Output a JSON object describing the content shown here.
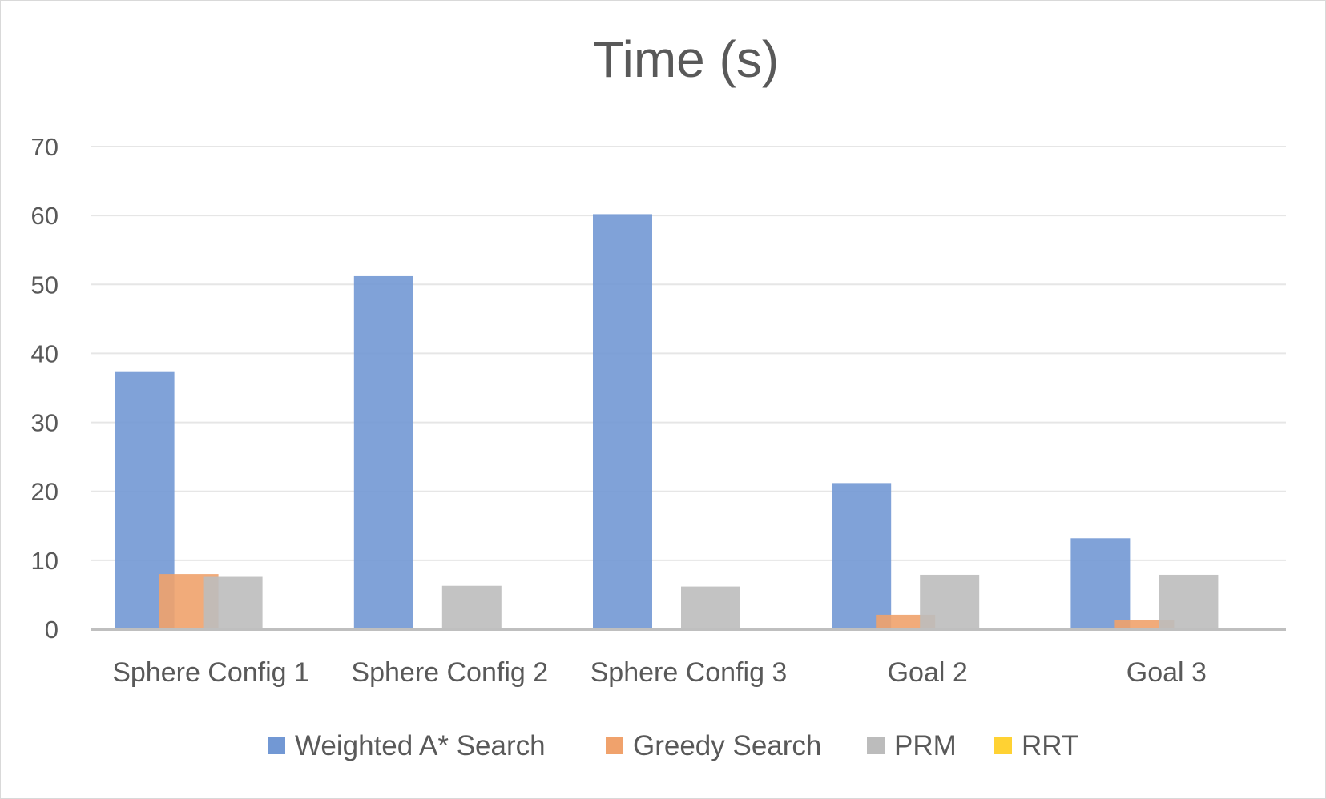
{
  "chart_data": {
    "type": "bar",
    "title": "Time (s)",
    "xlabel": "",
    "ylabel": "",
    "ylim": [
      0,
      70
    ],
    "yticks": [
      "0",
      "10",
      "20",
      "30",
      "40",
      "50",
      "60",
      "70"
    ],
    "categories": [
      "Sphere Config 1",
      "Sphere Config 2",
      "Sphere Config 3",
      "Goal 2",
      "Goal 3"
    ],
    "series": [
      {
        "name": "Weighted A* Search",
        "color": "#7298d4",
        "values": [
          37.3,
          51.2,
          60.2,
          21.2,
          13.2
        ]
      },
      {
        "name": "Greedy Search",
        "color": "#f0a26c",
        "values": [
          8.0,
          0,
          0,
          2.1,
          1.3
        ]
      },
      {
        "name": "PRM",
        "color": "#bcbcbc",
        "values": [
          7.6,
          6.3,
          6.2,
          7.9,
          7.9
        ]
      },
      {
        "name": "RRT",
        "color": "#ffd233",
        "values": [
          0,
          0,
          0,
          0,
          0
        ]
      }
    ],
    "grid": true,
    "legend_position": "bottom"
  }
}
